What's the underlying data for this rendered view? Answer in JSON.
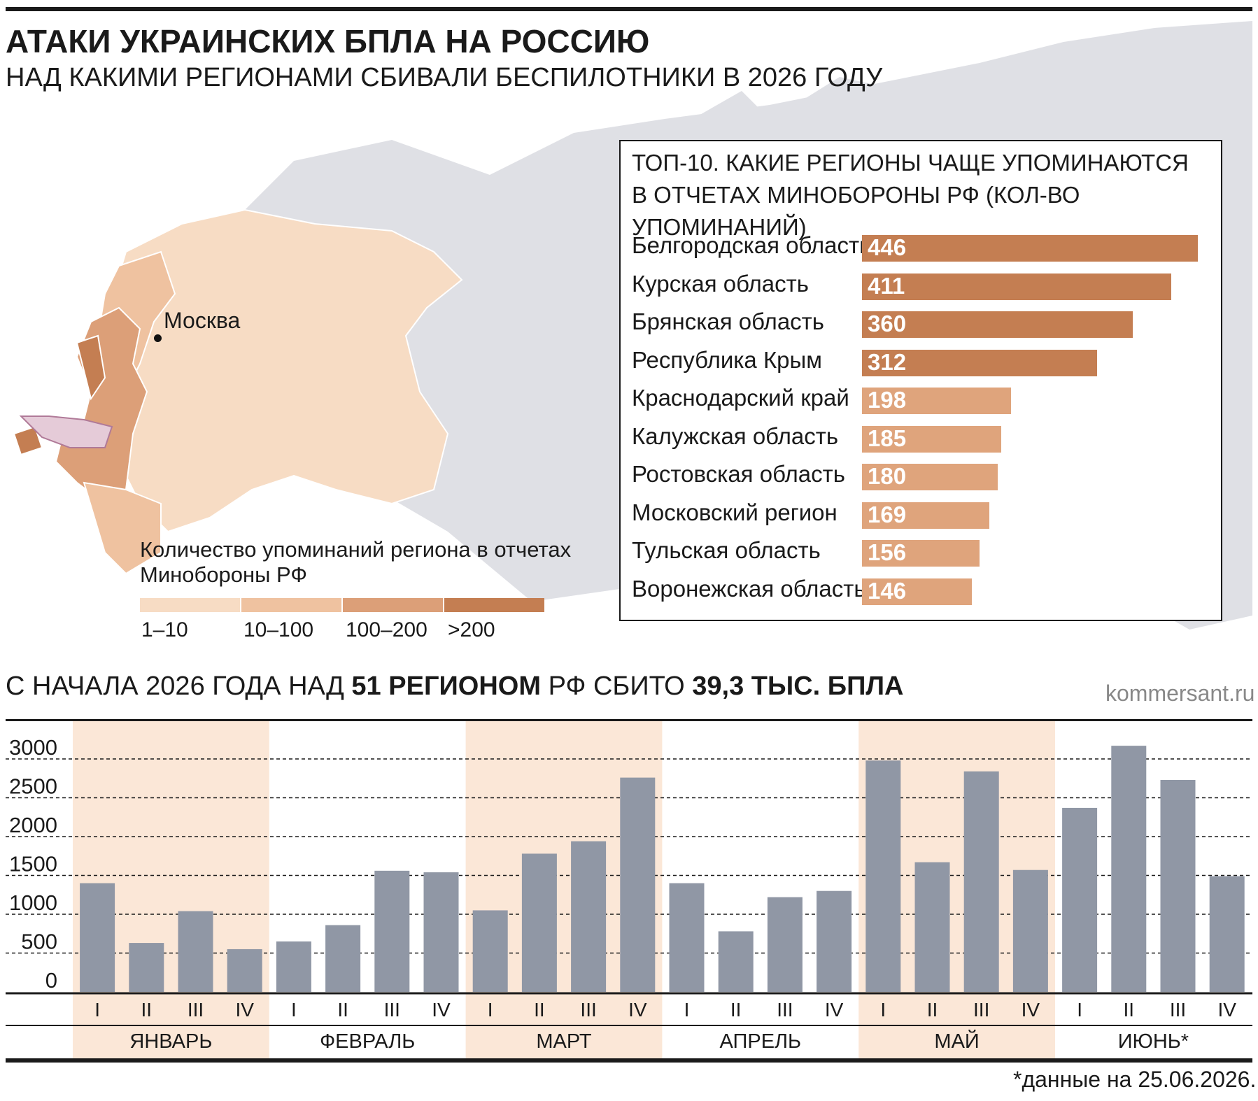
{
  "header": {
    "title": "АТАКИ УКРАИНСКИХ БПЛА НА РОССИЮ",
    "subtitle": "НАД КАКИМИ РЕГИОНАМИ СБИВАЛИ БЕСПИЛОТНИКИ В 2026 ГОДУ"
  },
  "map": {
    "city_label": "Москва",
    "legend": {
      "title": "Количество упоминаний региона в отчетах Минобороны РФ",
      "bins": [
        {
          "label": "1–10",
          "color": "#f7dcc4"
        },
        {
          "label": "10–100",
          "color": "#efc2a0"
        },
        {
          "label": "100–200",
          "color": "#dc9f78"
        },
        {
          "label": ">200",
          "color": "#c47e52"
        }
      ]
    }
  },
  "top10": {
    "title_line1": "ТОП-10. КАКИЕ РЕГИОНЫ ЧАЩЕ УПОМИНАЮТСЯ",
    "title_line2": "В ОТЧЕТАХ МИНОБОРОНЫ РФ (КОЛ-ВО УПОМИНАНИЙ)",
    "colors": {
      "high": "#c47e52",
      "mid": "#dfa47c"
    },
    "items": [
      {
        "region": "Белгородская область",
        "value": 446
      },
      {
        "region": "Курская область",
        "value": 411
      },
      {
        "region": "Брянская область",
        "value": 360
      },
      {
        "region": "Республика Крым",
        "value": 312
      },
      {
        "region": "Краснодарский край",
        "value": 198
      },
      {
        "region": "Калужская область",
        "value": 185
      },
      {
        "region": "Ростовская область",
        "value": 180
      },
      {
        "region": "Московский регион",
        "value": 169
      },
      {
        "region": "Тульская область",
        "value": 156
      },
      {
        "region": "Воронежская область",
        "value": 146
      }
    ]
  },
  "summary": {
    "part1": "С НАЧАЛА 2026 ГОДА НАД ",
    "bold1": "51 РЕГИОНОМ",
    "part2": " РФ СБИТО ",
    "bold2": "39,3 ТЫС. БПЛА"
  },
  "source": "kommersant.ru",
  "footnote": "*данные на 25.06.2026.",
  "chart_data": {
    "type": "bar",
    "title": "",
    "xlabel": "",
    "ylabel": "",
    "ylim": [
      0,
      3000
    ],
    "yticks": [
      0,
      500,
      1000,
      1500,
      2000,
      2500,
      3000
    ],
    "grid": true,
    "bar_color": "#9097a5",
    "band_color": "#fbe7d7",
    "months": [
      {
        "name": "ЯНВАРЬ",
        "weeks": [
          "I",
          "II",
          "III",
          "IV"
        ],
        "values": [
          1400,
          630,
          1040,
          550
        ],
        "shaded": true
      },
      {
        "name": "ФЕВРАЛЬ",
        "weeks": [
          "I",
          "II",
          "III",
          "IV"
        ],
        "values": [
          650,
          860,
          1560,
          1540
        ],
        "shaded": false
      },
      {
        "name": "МАРТ",
        "weeks": [
          "I",
          "II",
          "III",
          "IV"
        ],
        "values": [
          1050,
          1780,
          1940,
          2760
        ],
        "shaded": true
      },
      {
        "name": "АПРЕЛЬ",
        "weeks": [
          "I",
          "II",
          "III",
          "IV"
        ],
        "values": [
          1400,
          780,
          1220,
          1300
        ],
        "shaded": false
      },
      {
        "name": "МАЙ",
        "weeks": [
          "I",
          "II",
          "III",
          "IV"
        ],
        "values": [
          2980,
          1670,
          2840,
          1570
        ],
        "shaded": true
      },
      {
        "name": "ИЮНЬ*",
        "weeks": [
          "I",
          "II",
          "III",
          "IV"
        ],
        "values": [
          2370,
          3170,
          2730,
          1490
        ],
        "shaded": false
      }
    ]
  }
}
